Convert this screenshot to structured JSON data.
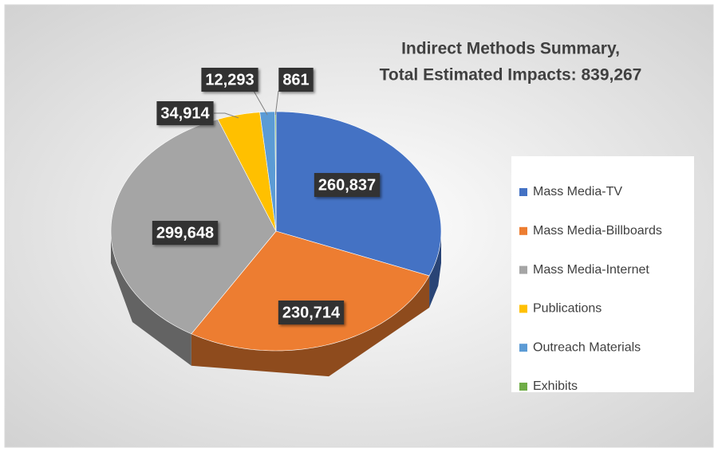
{
  "chart_data": {
    "type": "pie",
    "title": [
      "Indirect Methods Summary,",
      "Total Estimated Impacts: 839,267"
    ],
    "categories": [
      "Mass Media-TV",
      "Mass Media-Billboards",
      "Mass Media-Internet",
      "Publications",
      "Outreach Materials",
      "Exhibits"
    ],
    "values": [
      260837,
      230714,
      299648,
      34914,
      12293,
      861
    ],
    "value_labels": [
      "260,837",
      "230,714",
      "299,648",
      "34,914",
      "12,293",
      "861"
    ],
    "colors": [
      "#4472C4",
      "#ED7D31",
      "#A5A5A5",
      "#FFC000",
      "#5B9BD5",
      "#70AD47"
    ],
    "legend": "right"
  }
}
